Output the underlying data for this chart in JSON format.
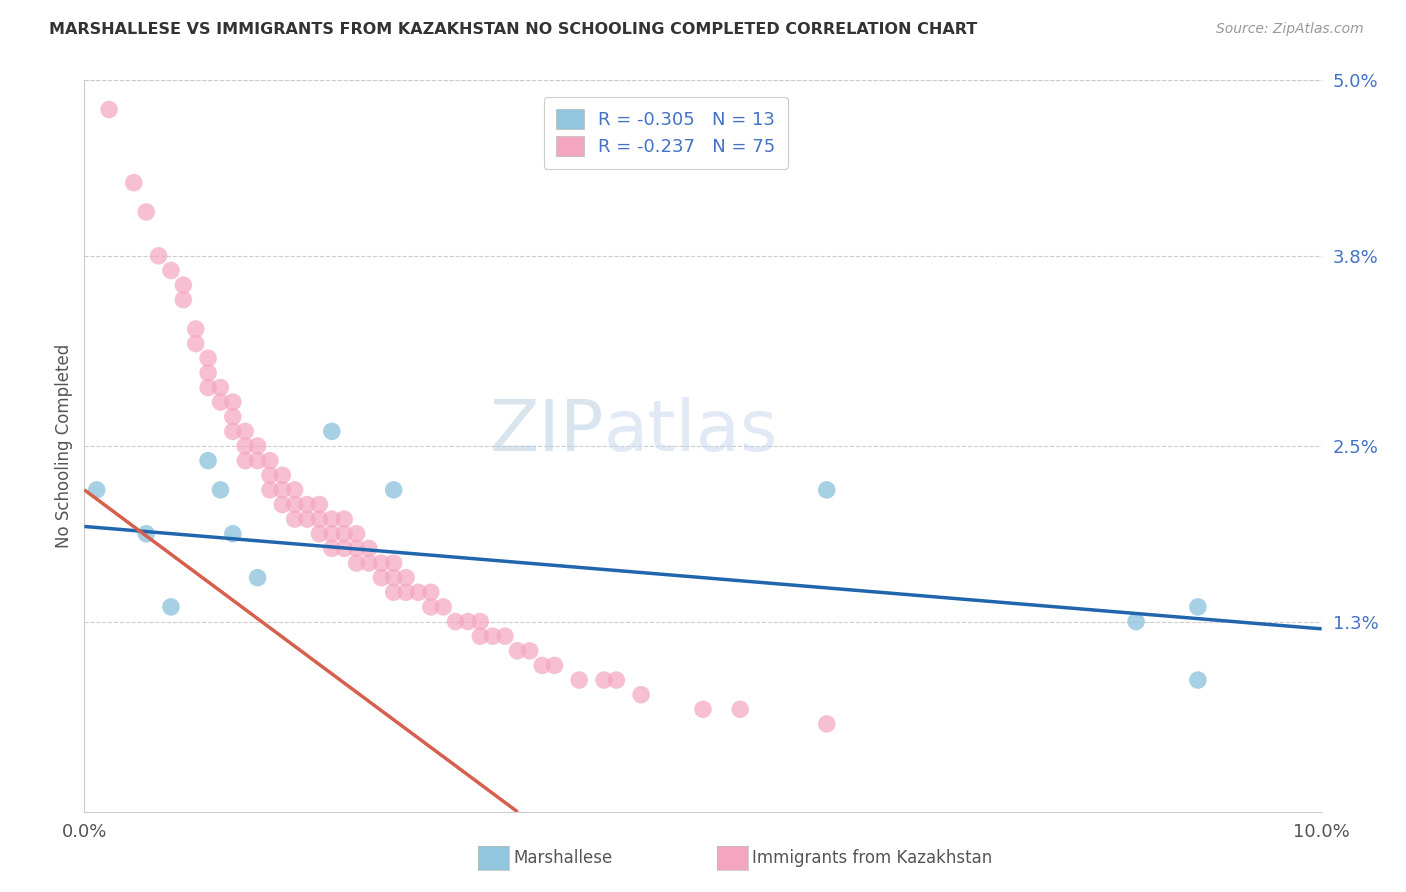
{
  "title": "MARSHALLESE VS IMMIGRANTS FROM KAZAKHSTAN NO SCHOOLING COMPLETED CORRELATION CHART",
  "source": "Source: ZipAtlas.com",
  "ylabel": "No Schooling Completed",
  "xlim": [
    0.0,
    0.1
  ],
  "ylim": [
    0.0,
    0.05
  ],
  "color_marshallese": "#92c5de",
  "color_kazakhstan": "#f4a6c0",
  "color_trend_marshallese": "#2166ac",
  "color_trend_kazakhstan": "#d6604d",
  "marshallese_x": [
    0.001,
    0.005,
    0.007,
    0.01,
    0.011,
    0.012,
    0.014,
    0.02,
    0.025,
    0.06,
    0.085,
    0.09,
    0.09
  ],
  "marshallese_y": [
    0.022,
    0.019,
    0.014,
    0.024,
    0.022,
    0.019,
    0.016,
    0.026,
    0.022,
    0.022,
    0.013,
    0.014,
    0.009
  ],
  "kazakhstan_x": [
    0.002,
    0.004,
    0.005,
    0.006,
    0.007,
    0.008,
    0.008,
    0.009,
    0.009,
    0.01,
    0.01,
    0.01,
    0.011,
    0.011,
    0.012,
    0.012,
    0.012,
    0.013,
    0.013,
    0.013,
    0.014,
    0.014,
    0.015,
    0.015,
    0.015,
    0.016,
    0.016,
    0.016,
    0.017,
    0.017,
    0.017,
    0.018,
    0.018,
    0.019,
    0.019,
    0.019,
    0.02,
    0.02,
    0.02,
    0.021,
    0.021,
    0.021,
    0.022,
    0.022,
    0.022,
    0.023,
    0.023,
    0.024,
    0.024,
    0.025,
    0.025,
    0.025,
    0.026,
    0.026,
    0.027,
    0.028,
    0.028,
    0.029,
    0.03,
    0.031,
    0.032,
    0.032,
    0.033,
    0.034,
    0.035,
    0.036,
    0.037,
    0.038,
    0.04,
    0.042,
    0.043,
    0.045,
    0.05,
    0.053,
    0.06
  ],
  "kazakhstan_y": [
    0.048,
    0.043,
    0.041,
    0.038,
    0.037,
    0.036,
    0.035,
    0.033,
    0.032,
    0.031,
    0.03,
    0.029,
    0.029,
    0.028,
    0.028,
    0.027,
    0.026,
    0.026,
    0.025,
    0.024,
    0.025,
    0.024,
    0.024,
    0.023,
    0.022,
    0.023,
    0.022,
    0.021,
    0.022,
    0.021,
    0.02,
    0.021,
    0.02,
    0.021,
    0.02,
    0.019,
    0.02,
    0.019,
    0.018,
    0.02,
    0.019,
    0.018,
    0.019,
    0.018,
    0.017,
    0.018,
    0.017,
    0.017,
    0.016,
    0.017,
    0.016,
    0.015,
    0.016,
    0.015,
    0.015,
    0.015,
    0.014,
    0.014,
    0.013,
    0.013,
    0.013,
    0.012,
    0.012,
    0.012,
    0.011,
    0.011,
    0.01,
    0.01,
    0.009,
    0.009,
    0.009,
    0.008,
    0.007,
    0.007,
    0.006
  ],
  "trend_m_x0": 0.0,
  "trend_m_y0": 0.0195,
  "trend_m_x1": 0.1,
  "trend_m_y1": 0.0125,
  "trend_k_x0": 0.0,
  "trend_k_y0": 0.022,
  "trend_k_x1": 0.035,
  "trend_k_y1": 0.0,
  "background_color": "#ffffff",
  "grid_color": "#cccccc"
}
